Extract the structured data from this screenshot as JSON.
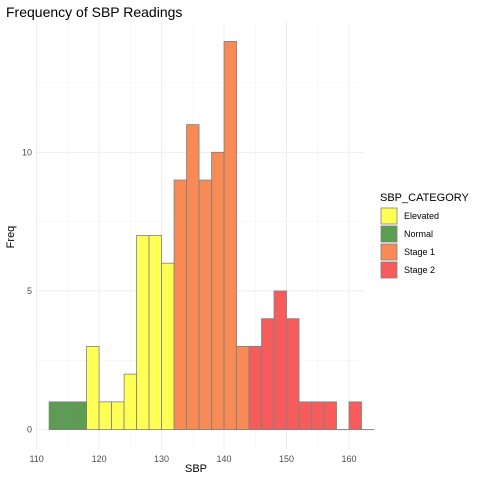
{
  "chart_data": {
    "type": "bar",
    "title": "Frequency of SBP Readings",
    "xlabel": "SBP",
    "ylabel": "Freq",
    "xlim": [
      109.9,
      162.4
    ],
    "ylim": [
      -0.7,
      14.7
    ],
    "x_ticks": [
      110,
      120,
      130,
      140,
      150,
      160
    ],
    "y_ticks": [
      0,
      5,
      10
    ],
    "grid": true,
    "bin_width": 2,
    "legend": {
      "title": "SBP_CATEGORY",
      "placement": "right",
      "entries": [
        {
          "label": "Elevated",
          "color": "#ffff55"
        },
        {
          "label": "Normal",
          "color": "#5c9c53"
        },
        {
          "label": "Stage 1",
          "color": "#f78a55"
        },
        {
          "label": "Stage 2",
          "color": "#f65c5c"
        }
      ]
    },
    "bars": [
      {
        "x": 113,
        "value": 1,
        "category": "Normal"
      },
      {
        "x": 115,
        "value": 1,
        "category": "Normal"
      },
      {
        "x": 117,
        "value": 1,
        "category": "Normal"
      },
      {
        "x": 119,
        "value": 3,
        "category": "Elevated"
      },
      {
        "x": 121,
        "value": 1,
        "category": "Elevated"
      },
      {
        "x": 123,
        "value": 1,
        "category": "Elevated"
      },
      {
        "x": 125,
        "value": 2,
        "category": "Elevated"
      },
      {
        "x": 127,
        "value": 7,
        "category": "Elevated"
      },
      {
        "x": 129,
        "value": 7,
        "category": "Elevated"
      },
      {
        "x": 131,
        "value": 6,
        "category": "Elevated"
      },
      {
        "x": 133,
        "value": 9,
        "category": "Stage 1"
      },
      {
        "x": 135,
        "value": 11,
        "category": "Stage 1"
      },
      {
        "x": 137,
        "value": 9,
        "category": "Stage 1"
      },
      {
        "x": 139,
        "value": 10,
        "category": "Stage 1"
      },
      {
        "x": 141,
        "value": 14,
        "category": "Stage 1"
      },
      {
        "x": 143,
        "value": 3,
        "category": "Stage 1"
      },
      {
        "x": 145,
        "value": 3,
        "category": "Stage 2"
      },
      {
        "x": 147,
        "value": 4,
        "category": "Stage 2"
      },
      {
        "x": 149,
        "value": 5,
        "category": "Stage 2"
      },
      {
        "x": 151,
        "value": 4,
        "category": "Stage 2"
      },
      {
        "x": 153,
        "value": 1,
        "category": "Stage 2"
      },
      {
        "x": 155,
        "value": 1,
        "category": "Stage 2"
      },
      {
        "x": 157,
        "value": 1,
        "category": "Stage 2"
      },
      {
        "x": 161,
        "value": 1,
        "category": "Stage 2"
      }
    ],
    "empty_bins": [
      159,
      163
    ]
  }
}
